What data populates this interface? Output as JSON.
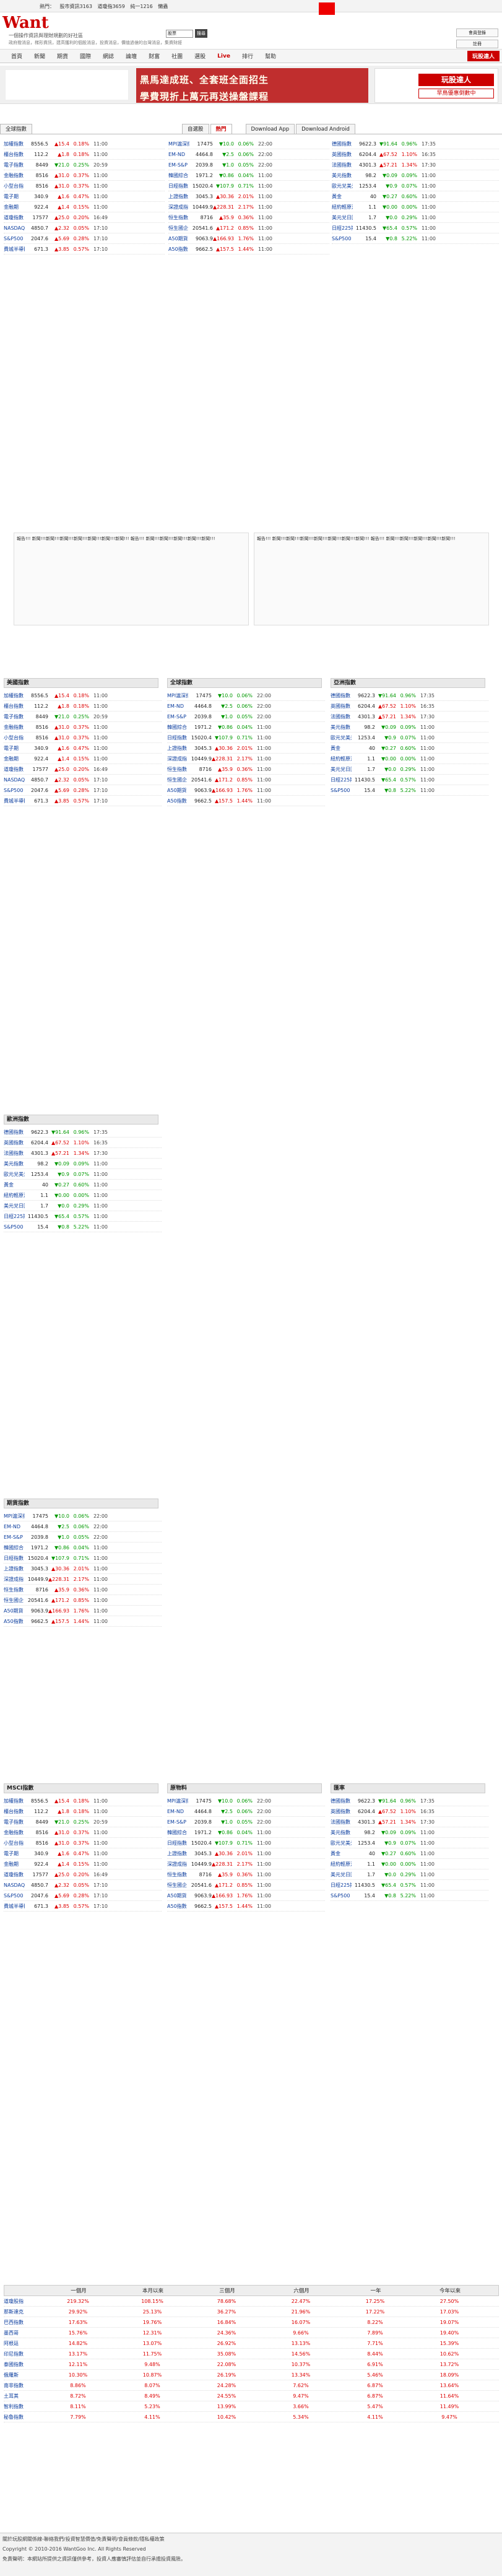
{
  "site": {
    "logo_text": "Want",
    "hot_label": "熱門：",
    "hot_links": [
      "股市資訊3163",
      "道瓊指3659",
      "純一1216",
      "懶蟲"
    ],
    "slogan": "一個操作資訊與理財規劃的好社區",
    "slogan_sub": "政府撥消息，梯形資訊，建高獲利的個股消息，投資消息，價值過億的台灣消息，集資財經",
    "search_placeholder": "股票",
    "search_btn": "搜尋",
    "login": "會員登錄",
    "register": "註冊",
    "nav": [
      "首頁",
      "新聞",
      "期貨",
      "國際",
      "網誌",
      "論壇",
      "財富",
      "社團",
      "選股",
      "Live",
      "排行",
      "幫助"
    ],
    "promo": "玩股達人"
  },
  "banner": {
    "title_1": "黑馬達成班、全套班全面招生",
    "title_2": "學費現折上萬元再送操盤課程",
    "btn_1": "玩股達人",
    "btn_2": "早鳥優惠倒數中"
  },
  "tools": {
    "tab_1": "全球指數",
    "tab_2": "自選股",
    "tab_3": "熱門",
    "download_app": "Download App",
    "download_android": "Download Android"
  },
  "quotes_left": [
    {
      "name": "加權指數",
      "price": "8556.5",
      "chg": "▲15.4",
      "pct": "0.18%",
      "time": "11:00"
    },
    {
      "name": "櫃台指數",
      "price": "112.2",
      "chg": "▲1.8",
      "pct": "0.18%",
      "time": "11:00"
    },
    {
      "name": "電子指數",
      "price": "8449",
      "chg": "▼21.0",
      "pct": "0.25%",
      "time": "20:59"
    },
    {
      "name": "金融指數",
      "price": "8516",
      "chg": "▲31.0",
      "pct": "0.37%",
      "time": "11:00"
    },
    {
      "name": "小型台指",
      "price": "8516",
      "chg": "▲31.0",
      "pct": "0.37%",
      "time": "11:00"
    },
    {
      "name": "電子期",
      "price": "340.9",
      "chg": "▲1.6",
      "pct": "0.47%",
      "time": "11:00"
    },
    {
      "name": "金融期",
      "price": "922.4",
      "chg": "▲1.4",
      "pct": "0.15%",
      "time": "11:00"
    },
    {
      "name": "道瓊指數",
      "price": "17577",
      "chg": "▲25.0",
      "pct": "0.20%",
      "time": "16:49"
    },
    {
      "name": "NASDAQ",
      "price": "4850.7",
      "chg": "▲2.32",
      "pct": "0.05%",
      "time": "17:10"
    },
    {
      "name": "S&P500",
      "price": "2047.6",
      "chg": "▲5.69",
      "pct": "0.28%",
      "time": "17:10"
    },
    {
      "name": "費城半導體",
      "price": "671.3",
      "chg": "▲3.85",
      "pct": "0.57%",
      "time": "17:10"
    }
  ],
  "quotes_mid": [
    {
      "name": "MPI滬深指數",
      "price": "17475",
      "chg": "▼10.0",
      "pct": "0.06%",
      "time": "22:00"
    },
    {
      "name": "EM-ND",
      "price": "4464.8",
      "chg": "▼2.5",
      "pct": "0.06%",
      "time": "22:00"
    },
    {
      "name": "EM-S&P",
      "price": "2039.8",
      "chg": "▼1.0",
      "pct": "0.05%",
      "time": "22:00"
    },
    {
      "name": "韓國綜合",
      "price": "1971.2",
      "chg": "▼0.86",
      "pct": "0.04%",
      "time": "11:00"
    },
    {
      "name": "日經指數",
      "price": "15020.4",
      "chg": "▼107.9",
      "pct": "0.71%",
      "time": "11:00"
    },
    {
      "name": "上證指數",
      "price": "3045.3",
      "chg": "▲30.36",
      "pct": "2.01%",
      "time": "11:00"
    },
    {
      "name": "深證成指",
      "price": "10449.9",
      "chg": "▲228.31",
      "pct": "2.17%",
      "time": "11:00"
    },
    {
      "name": "恒生指數",
      "price": "8716",
      "chg": "▲35.9",
      "pct": "0.36%",
      "time": "11:00"
    },
    {
      "name": "恒生國企",
      "price": "20541.6",
      "chg": "▲171.2",
      "pct": "0.85%",
      "time": "11:00"
    },
    {
      "name": "A50期貨",
      "price": "9063.9",
      "chg": "▲166.93",
      "pct": "1.76%",
      "time": "11:00"
    },
    {
      "name": "A50指數",
      "price": "9662.5",
      "chg": "▲157.5",
      "pct": "1.44%",
      "time": "11:00"
    }
  ],
  "quotes_right": [
    {
      "name": "德國指數",
      "price": "9622.3",
      "chg": "▼91.64",
      "pct": "0.96%",
      "time": "17:35"
    },
    {
      "name": "英國指數",
      "price": "6204.4",
      "chg": "▲67.52",
      "pct": "1.10%",
      "time": "16:35"
    },
    {
      "name": "法國指數",
      "price": "4301.3",
      "chg": "▲57.21",
      "pct": "1.34%",
      "time": "17:30"
    },
    {
      "name": "美元指數",
      "price": "98.2",
      "chg": "▼0.09",
      "pct": "0.09%",
      "time": "11:00"
    },
    {
      "name": "歐元兌美元",
      "price": "1253.4",
      "chg": "▼0.9",
      "pct": "0.07%",
      "time": "11:00"
    },
    {
      "name": "黃金",
      "price": "40",
      "chg": "▼0.27",
      "pct": "0.60%",
      "time": "11:00"
    },
    {
      "name": "紐約輕原油",
      "price": "1.1",
      "chg": "▼0.00",
      "pct": "0.00%",
      "time": "11:00"
    },
    {
      "name": "美元兌日圓",
      "price": "1.7",
      "chg": "▼0.0",
      "pct": "0.29%",
      "time": "11:00"
    },
    {
      "name": "日經225期",
      "price": "11430.5",
      "chg": "▼65.4",
      "pct": "0.57%",
      "time": "11:00"
    },
    {
      "name": "S&P500 VIX",
      "price": "15.4",
      "chg": "▼0.8",
      "pct": "5.22%",
      "time": "11:00"
    }
  ],
  "mid_ad_text": "報告!!! 新聞!!!新聞!!!新聞!!!新聞!!!新聞!!!新聞!!!新聞!!! 報告!!! 新聞!!!新聞!!!新聞!!!新聞!!!新聞!!!",
  "sections": {
    "us": "美國指數",
    "world": "全球指數",
    "asia": "亞洲指數",
    "europe": "歐洲指數",
    "futures": "期貨指數",
    "msci": "MSCI指數",
    "fx": "匯率",
    "commodity": "原物料",
    "bottom_headers": [
      "一個月",
      "本月以來",
      "三個月",
      "六個月",
      "一年",
      "今年以來"
    ]
  },
  "bottom_rows": [
    {
      "name": "道瓊股指",
      "a": "219.32%",
      "b": "108.15%",
      "c": "78.68%",
      "d": "22.47%",
      "e": "17.25%",
      "f": "27.50%"
    },
    {
      "name": "那斯達克",
      "a": "29.92%",
      "b": "25.13%",
      "c": "36.27%",
      "d": "21.96%",
      "e": "17.22%",
      "f": "17.03%"
    },
    {
      "name": "巴西指數",
      "a": "17.63%",
      "b": "19.76%",
      "c": "16.84%",
      "d": "16.07%",
      "e": "8.22%",
      "f": "19.07%"
    },
    {
      "name": "墨西哥",
      "a": "15.76%",
      "b": "12.31%",
      "c": "24.36%",
      "d": "9.66%",
      "e": "7.89%",
      "f": "19.40%"
    },
    {
      "name": "阿根廷",
      "a": "14.82%",
      "b": "13.07%",
      "c": "26.92%",
      "d": "13.13%",
      "e": "7.71%",
      "f": "15.39%"
    },
    {
      "name": "印尼指數",
      "a": "13.17%",
      "b": "11.75%",
      "c": "35.08%",
      "d": "14.56%",
      "e": "8.44%",
      "f": "10.62%"
    },
    {
      "name": "泰國指數",
      "a": "12.11%",
      "b": "9.48%",
      "c": "22.08%",
      "d": "10.37%",
      "e": "6.91%",
      "f": "13.72%"
    },
    {
      "name": "俄羅斯",
      "a": "10.30%",
      "b": "10.87%",
      "c": "26.19%",
      "d": "13.34%",
      "e": "5.46%",
      "f": "18.09%"
    },
    {
      "name": "南非指數",
      "a": "8.86%",
      "b": "8.07%",
      "c": "24.28%",
      "d": "7.62%",
      "e": "6.87%",
      "f": "13.64%"
    },
    {
      "name": "土耳其",
      "a": "8.72%",
      "b": "8.49%",
      "c": "24.55%",
      "d": "9.47%",
      "e": "6.87%",
      "f": "11.64%"
    },
    {
      "name": "智利指數",
      "a": "8.11%",
      "b": "5.23%",
      "c": "13.99%",
      "d": "3.66%",
      "e": "5.47%",
      "f": "11.49%"
    },
    {
      "name": "秘魯指數",
      "a": "7.79%",
      "b": "4.11%",
      "c": "10.42%",
      "d": "5.34%",
      "e": "4.11%",
      "f": "9.47%"
    }
  ],
  "footer": {
    "line1": "關於玩股網關係線-聯絡我們/投資智慧價值/免責聲明/會員條款/隱私權政策",
    "line2": "Copyright © 2010-2016 WantGoo Inc. All Rights Reserved",
    "line3": "免責聲明：本網站所提供之資訊僅供參考，投資人應審慎評估並自行承擔投資風險。"
  }
}
